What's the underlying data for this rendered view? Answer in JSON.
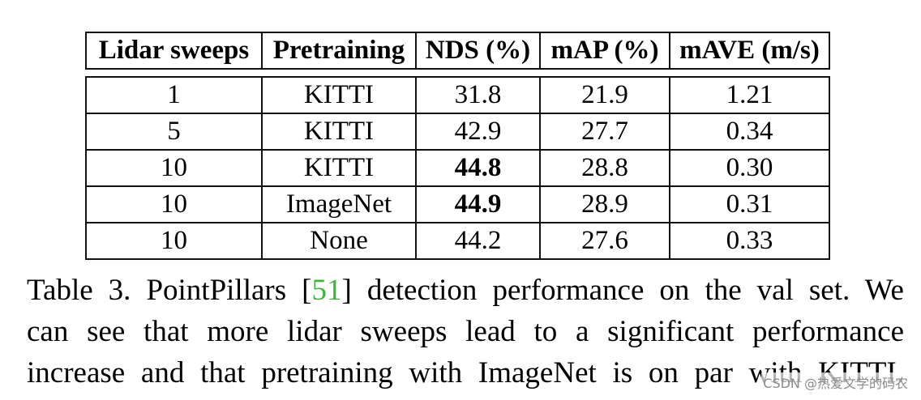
{
  "table": {
    "headers": [
      "Lidar sweeps",
      "Pretraining",
      "NDS (%)",
      "mAP (%)",
      "mAVE (m/s)"
    ],
    "rows": [
      [
        "1",
        "KITTI",
        "31.8",
        "21.9",
        "1.21"
      ],
      [
        "5",
        "KITTI",
        "42.9",
        "27.7",
        "0.34"
      ],
      [
        "10",
        "KITTI",
        "44.8",
        "28.8",
        "0.30"
      ],
      [
        "10",
        "ImageNet",
        "44.9",
        "28.9",
        "0.31"
      ],
      [
        "10",
        "None",
        "44.2",
        "27.6",
        "0.33"
      ]
    ],
    "bold_cells": [
      [
        2,
        2
      ],
      [
        3,
        2
      ]
    ]
  },
  "caption": {
    "prefix": "Table 3. PointPillars [",
    "citation": "51",
    "line1_rest": "] detection performance on the val set. We",
    "line2": "can see that more lidar sweeps lead to a significant performance",
    "line3": "increase and that pretraining with ImageNet is on par with KITTI.",
    "citation_color": "#3ab83a"
  },
  "watermark": "CSDN @热爱文学的码农"
}
